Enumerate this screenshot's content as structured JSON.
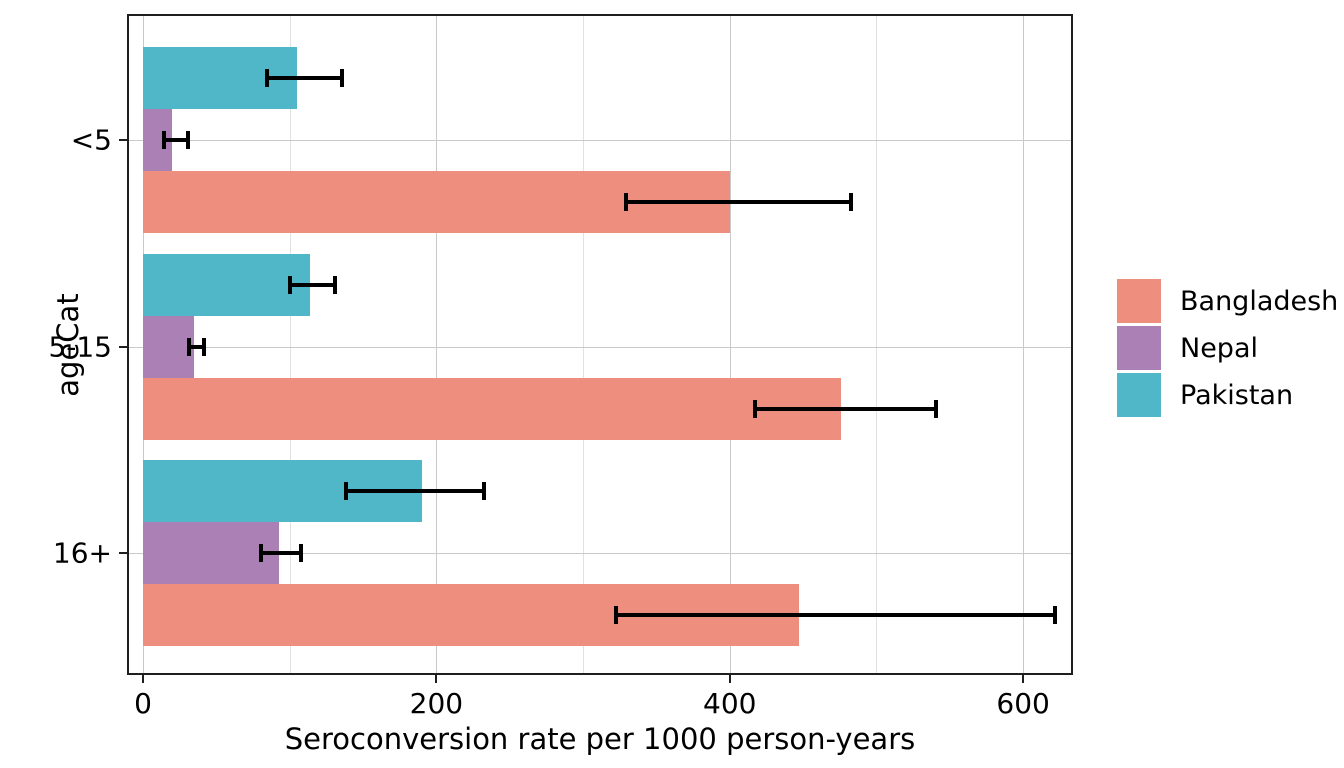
{
  "chart_data": {
    "type": "bar",
    "orientation": "horizontal",
    "xlabel": "Seroconversion rate per 1000 person-years",
    "ylabel": "ageCat",
    "categories": [
      "<5",
      "5-15",
      "16+"
    ],
    "x_major_ticks": [
      0,
      200,
      400,
      600
    ],
    "x_minor_ticks": [
      100,
      300,
      500
    ],
    "xlim": [
      0,
      634
    ],
    "series": [
      {
        "name": "Bangladesh",
        "color": "#EE8E7E",
        "values": [
          400,
          476,
          447
        ],
        "ci_low": [
          328,
          416,
          321
        ],
        "ci_high": [
          484,
          542,
          623
        ]
      },
      {
        "name": "Nepal",
        "color": "#AB80B4",
        "values": [
          20,
          35,
          93
        ],
        "ci_low": [
          13,
          30,
          79
        ],
        "ci_high": [
          32,
          43,
          109
        ]
      },
      {
        "name": "Pakistan",
        "color": "#4FB7C7",
        "values": [
          105,
          114,
          190
        ],
        "ci_low": [
          83,
          99,
          137
        ],
        "ci_high": [
          137,
          132,
          234
        ]
      }
    ],
    "legend": {
      "position": "right",
      "entries": [
        "Bangladesh",
        "Nepal",
        "Pakistan"
      ]
    },
    "grid": true,
    "style": {
      "grid_major_color": "#c9c9c9",
      "grid_minor_color": "#e1e1e1",
      "error_bar_color": "#000000",
      "panel_border_color": "#1f1f1f",
      "background": "#ffffff"
    }
  }
}
